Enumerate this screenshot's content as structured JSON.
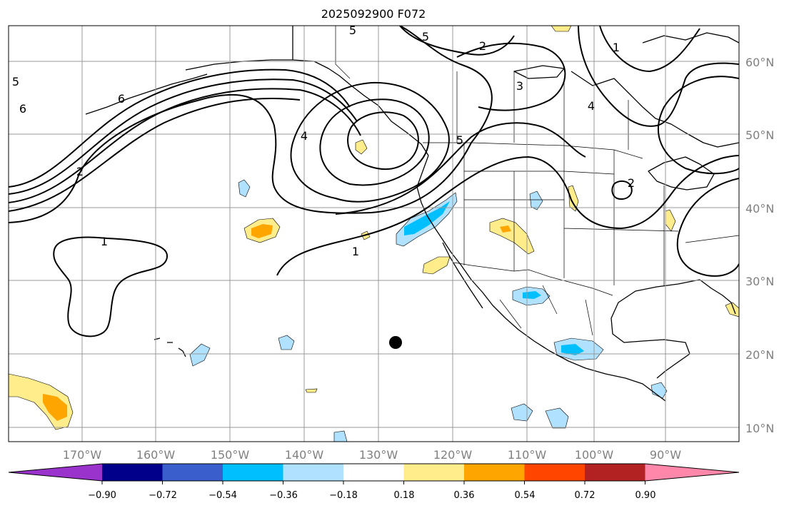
{
  "title": "2025092900 F072",
  "colors": {
    "contour": "#000000",
    "grid": "#999999",
    "tick_label": "#808080",
    "marker": "#000000"
  },
  "lat_labels": [
    "60°N",
    "50°N",
    "40°N",
    "30°N",
    "20°N",
    "10°N"
  ],
  "lon_labels": [
    "170°W",
    "160°W",
    "150°W",
    "140°W",
    "130°W",
    "120°W",
    "110°W",
    "100°W",
    "90°W"
  ],
  "contour_labels": [
    "5",
    "5",
    "1",
    "3",
    "2",
    "4",
    "5",
    "6",
    "5",
    "6",
    "2",
    "1",
    "1",
    "2",
    "4"
  ],
  "colorbar": {
    "colors": [
      "#9933cc",
      "#00008b",
      "#3a5fcd",
      "#00bfff",
      "#b0e2ff",
      "#ffffff",
      "#ffec8b",
      "#ffa500",
      "#ff4500",
      "#b22222",
      "#ff88aa"
    ],
    "tick_labels": [
      "−0.90",
      "−0.72",
      "−0.54",
      "−0.36",
      "−0.18",
      "0.18",
      "0.36",
      "0.54",
      "0.72",
      "0.90"
    ]
  }
}
